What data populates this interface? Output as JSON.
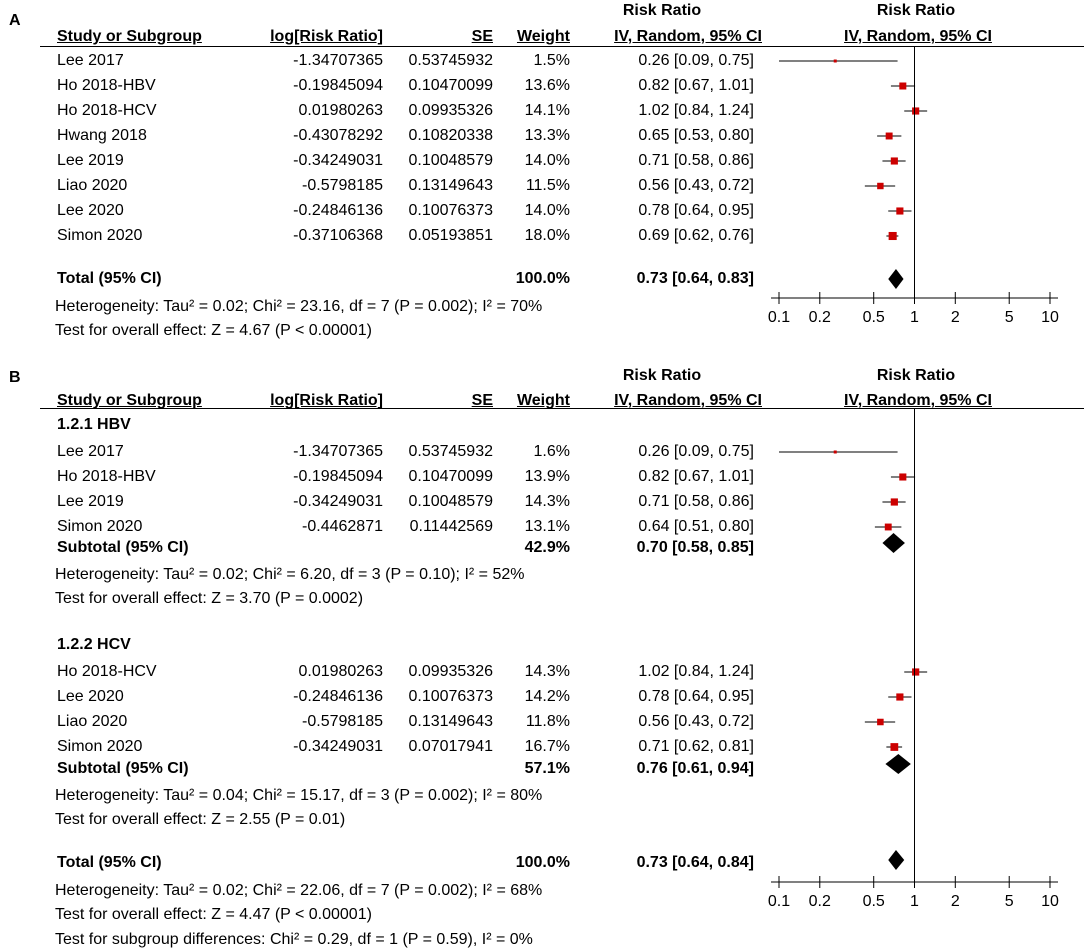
{
  "panel_a": {
    "label": "A",
    "header": {
      "rr_title": "Risk Ratio",
      "study": "Study or Subgroup",
      "logrr": "log[Risk Ratio]",
      "se": "SE",
      "weight": "Weight",
      "ci": "IV, Random, 95% CI",
      "plot_title": "Risk Ratio",
      "plot_sub": "IV, Random, 95% CI"
    },
    "studies": [
      {
        "name": "Lee 2017",
        "logrr": "-1.34707365",
        "se": "0.53745932",
        "weight": "1.5%",
        "ci": "0.26 [0.09, 0.75]"
      },
      {
        "name": "Ho 2018-HBV",
        "logrr": "-0.19845094",
        "se": "0.10470099",
        "weight": "13.6%",
        "ci": "0.82 [0.67, 1.01]"
      },
      {
        "name": "Ho 2018-HCV",
        "logrr": "0.01980263",
        "se": "0.09935326",
        "weight": "14.1%",
        "ci": "1.02 [0.84, 1.24]"
      },
      {
        "name": "Hwang 2018",
        "logrr": "-0.43078292",
        "se": "0.10820338",
        "weight": "13.3%",
        "ci": "0.65 [0.53, 0.80]"
      },
      {
        "name": "Lee 2019",
        "logrr": "-0.34249031",
        "se": "0.10048579",
        "weight": "14.0%",
        "ci": "0.71 [0.58, 0.86]"
      },
      {
        "name": "Liao 2020",
        "logrr": "-0.5798185",
        "se": "0.13149643",
        "weight": "11.5%",
        "ci": "0.56 [0.43, 0.72]"
      },
      {
        "name": "Lee 2020",
        "logrr": "-0.24846136",
        "se": "0.10076373",
        "weight": "14.0%",
        "ci": "0.78 [0.64, 0.95]"
      },
      {
        "name": "Simon 2020",
        "logrr": "-0.37106368",
        "se": "0.05193851",
        "weight": "18.0%",
        "ci": "0.69 [0.62, 0.76]"
      }
    ],
    "total": {
      "label": "Total (95% CI)",
      "weight": "100.0%",
      "ci": "0.73 [0.64, 0.83]"
    },
    "heterogeneity": "Heterogeneity: Tau² = 0.02; Chi² = 23.16, df = 7 (P = 0.002); I² = 70%",
    "overall": "Test for overall effect: Z = 4.67 (P < 0.00001)"
  },
  "panel_b": {
    "label": "B",
    "header": {
      "rr_title": "Risk Ratio",
      "study": "Study or Subgroup",
      "logrr": "log[Risk Ratio]",
      "se": "SE",
      "weight": "Weight",
      "ci": "IV, Random, 95% CI",
      "plot_title": "Risk Ratio",
      "plot_sub": "IV, Random, 95% CI"
    },
    "subgroups": [
      {
        "title": "1.2.1 HBV",
        "studies": [
          {
            "name": "Lee 2017",
            "logrr": "-1.34707365",
            "se": "0.53745932",
            "weight": "1.6%",
            "ci": "0.26 [0.09, 0.75]"
          },
          {
            "name": "Ho 2018-HBV",
            "logrr": "-0.19845094",
            "se": "0.10470099",
            "weight": "13.9%",
            "ci": "0.82 [0.67, 1.01]"
          },
          {
            "name": "Lee 2019",
            "logrr": "-0.34249031",
            "se": "0.10048579",
            "weight": "14.3%",
            "ci": "0.71 [0.58, 0.86]"
          },
          {
            "name": "Simon 2020",
            "logrr": "-0.4462871",
            "se": "0.11442569",
            "weight": "13.1%",
            "ci": "0.64 [0.51, 0.80]"
          }
        ],
        "subtotal": {
          "label": "Subtotal (95% CI)",
          "weight": "42.9%",
          "ci": "0.70 [0.58, 0.85]"
        },
        "heterogeneity": "Heterogeneity: Tau² = 0.02; Chi² = 6.20, df = 3 (P = 0.10); I² = 52%",
        "overall": "Test for overall effect: Z = 3.70 (P = 0.0002)"
      },
      {
        "title": "1.2.2 HCV",
        "studies": [
          {
            "name": "Ho 2018-HCV",
            "logrr": "0.01980263",
            "se": "0.09935326",
            "weight": "14.3%",
            "ci": "1.02 [0.84, 1.24]"
          },
          {
            "name": "Lee 2020",
            "logrr": "-0.24846136",
            "se": "0.10076373",
            "weight": "14.2%",
            "ci": "0.78 [0.64, 0.95]"
          },
          {
            "name": "Liao 2020",
            "logrr": "-0.5798185",
            "se": "0.13149643",
            "weight": "11.8%",
            "ci": "0.56 [0.43, 0.72]"
          },
          {
            "name": "Simon 2020",
            "logrr": "-0.34249031",
            "se": "0.07017941",
            "weight": "16.7%",
            "ci": "0.71 [0.62, 0.81]"
          }
        ],
        "subtotal": {
          "label": "Subtotal (95% CI)",
          "weight": "57.1%",
          "ci": "0.76 [0.61, 0.94]"
        },
        "heterogeneity": "Heterogeneity: Tau² = 0.04; Chi² = 15.17, df = 3 (P = 0.002); I² = 80%",
        "overall": "Test for overall effect: Z = 2.55 (P = 0.01)"
      }
    ],
    "total": {
      "label": "Total (95% CI)",
      "weight": "100.0%",
      "ci": "0.73 [0.64, 0.84]"
    },
    "heterogeneity": "Heterogeneity: Tau² = 0.02; Chi² = 22.06, df = 7 (P = 0.002); I² = 68%",
    "overall": "Test for overall effect: Z = 4.47 (P < 0.00001)",
    "subgroup_diff": "Test for subgroup differences: Chi² = 0.29, df = 1 (P = 0.59), I² = 0%"
  },
  "chart_data": [
    {
      "type": "forest",
      "title": "A",
      "xscale": "log",
      "xlim": [
        0.1,
        10
      ],
      "xticks": [
        "0.1",
        "0.2",
        "0.5",
        "1",
        "2",
        "5",
        "10"
      ],
      "reference_line": 1,
      "marker_color": "#cc0000",
      "series": [
        {
          "name": "Lee 2017",
          "rr": 0.26,
          "lo": 0.09,
          "hi": 0.75,
          "weight": 1.5
        },
        {
          "name": "Ho 2018-HBV",
          "rr": 0.82,
          "lo": 0.67,
          "hi": 1.01,
          "weight": 13.6
        },
        {
          "name": "Ho 2018-HCV",
          "rr": 1.02,
          "lo": 0.84,
          "hi": 1.24,
          "weight": 14.1
        },
        {
          "name": "Hwang 2018",
          "rr": 0.65,
          "lo": 0.53,
          "hi": 0.8,
          "weight": 13.3
        },
        {
          "name": "Lee 2019",
          "rr": 0.71,
          "lo": 0.58,
          "hi": 0.86,
          "weight": 14.0
        },
        {
          "name": "Liao 2020",
          "rr": 0.56,
          "lo": 0.43,
          "hi": 0.72,
          "weight": 11.5
        },
        {
          "name": "Lee 2020",
          "rr": 0.78,
          "lo": 0.64,
          "hi": 0.95,
          "weight": 14.0
        },
        {
          "name": "Simon 2020",
          "rr": 0.69,
          "lo": 0.62,
          "hi": 0.76,
          "weight": 18.0
        }
      ],
      "pooled": [
        {
          "name": "Total (95% CI)",
          "rr": 0.73,
          "lo": 0.64,
          "hi": 0.83
        }
      ]
    },
    {
      "type": "forest",
      "title": "B",
      "xscale": "log",
      "xlim": [
        0.1,
        10
      ],
      "xticks": [
        "0.1",
        "0.2",
        "0.5",
        "1",
        "2",
        "5",
        "10"
      ],
      "reference_line": 1,
      "marker_color": "#cc0000",
      "series": [
        {
          "name": "Lee 2017",
          "group": "1.2.1 HBV",
          "rr": 0.26,
          "lo": 0.09,
          "hi": 0.75,
          "weight": 1.6
        },
        {
          "name": "Ho 2018-HBV",
          "group": "1.2.1 HBV",
          "rr": 0.82,
          "lo": 0.67,
          "hi": 1.01,
          "weight": 13.9
        },
        {
          "name": "Lee 2019",
          "group": "1.2.1 HBV",
          "rr": 0.71,
          "lo": 0.58,
          "hi": 0.86,
          "weight": 14.3
        },
        {
          "name": "Simon 2020",
          "group": "1.2.1 HBV",
          "rr": 0.64,
          "lo": 0.51,
          "hi": 0.8,
          "weight": 13.1
        },
        {
          "name": "Ho 2018-HCV",
          "group": "1.2.2 HCV",
          "rr": 1.02,
          "lo": 0.84,
          "hi": 1.24,
          "weight": 14.3
        },
        {
          "name": "Lee 2020",
          "group": "1.2.2 HCV",
          "rr": 0.78,
          "lo": 0.64,
          "hi": 0.95,
          "weight": 14.2
        },
        {
          "name": "Liao 2020",
          "group": "1.2.2 HCV",
          "rr": 0.56,
          "lo": 0.43,
          "hi": 0.72,
          "weight": 11.8
        },
        {
          "name": "Simon 2020",
          "group": "1.2.2 HCV",
          "rr": 0.71,
          "lo": 0.62,
          "hi": 0.81,
          "weight": 16.7
        }
      ],
      "pooled": [
        {
          "name": "Subtotal 1.2.1 HBV",
          "rr": 0.7,
          "lo": 0.58,
          "hi": 0.85
        },
        {
          "name": "Subtotal 1.2.2 HCV",
          "rr": 0.76,
          "lo": 0.61,
          "hi": 0.94
        },
        {
          "name": "Total (95% CI)",
          "rr": 0.73,
          "lo": 0.64,
          "hi": 0.84
        }
      ]
    }
  ]
}
